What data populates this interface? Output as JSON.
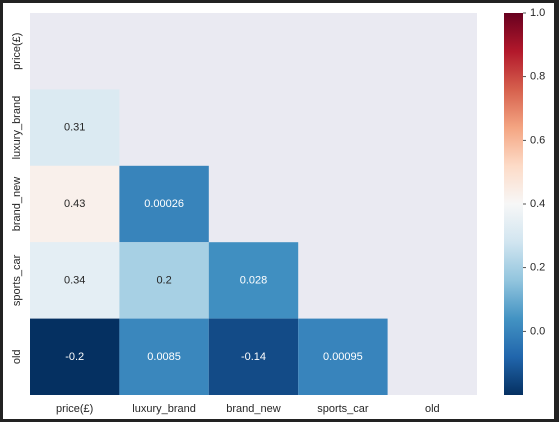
{
  "chart_data": {
    "type": "heatmap",
    "variables": [
      "price(£)",
      "luxury_brand",
      "brand_new",
      "sports_car",
      "old"
    ],
    "mask": "upper-triangle-including-diagonal",
    "cells": [
      {
        "row": "luxury_brand",
        "col": "price(£)",
        "value": 0.31,
        "label": "0.31"
      },
      {
        "row": "brand_new",
        "col": "price(£)",
        "value": 0.43,
        "label": "0.43"
      },
      {
        "row": "brand_new",
        "col": "luxury_brand",
        "value": 0.00026,
        "label": "0.00026"
      },
      {
        "row": "sports_car",
        "col": "price(£)",
        "value": 0.34,
        "label": "0.34"
      },
      {
        "row": "sports_car",
        "col": "luxury_brand",
        "value": 0.2,
        "label": "0.2"
      },
      {
        "row": "sports_car",
        "col": "brand_new",
        "value": 0.028,
        "label": "0.028"
      },
      {
        "row": "old",
        "col": "price(£)",
        "value": -0.2,
        "label": "-0.2"
      },
      {
        "row": "old",
        "col": "luxury_brand",
        "value": 0.0085,
        "label": "0.0085"
      },
      {
        "row": "old",
        "col": "brand_new",
        "value": -0.14,
        "label": "-0.14"
      },
      {
        "row": "old",
        "col": "sports_car",
        "value": 0.00095,
        "label": "0.00095"
      }
    ],
    "colorbar": {
      "colormap": "RdBu_r",
      "vmin": -0.2,
      "vmax": 1.0,
      "ticks": [
        0.0,
        0.2,
        0.4,
        0.6,
        0.8,
        1.0
      ],
      "tick_labels": [
        "0.0",
        "0.2",
        "0.4",
        "0.6",
        "0.8",
        "1.0"
      ]
    },
    "background_color": "#eaeaf2",
    "title": "",
    "xlabel": "",
    "ylabel": ""
  }
}
